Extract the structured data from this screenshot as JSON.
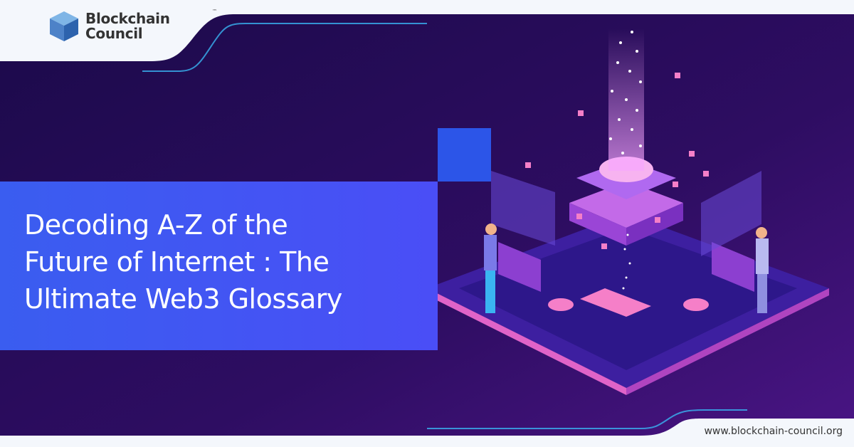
{
  "brand": {
    "name_line1": "Blockchain",
    "name_line2": "Council",
    "trademark": "™",
    "logo_icon": "cube-icon",
    "cube_colors": [
      "#7fb5e6",
      "#4d82c8",
      "#2d63ad"
    ]
  },
  "headline": {
    "lines": [
      "Decoding A-Z of the",
      "Future of Internet : The",
      "Ultimate Web3 Glossary"
    ]
  },
  "footer": {
    "url": "www.blockchain-council.org"
  },
  "colors": {
    "background_dark": "#1e0a4e",
    "background_purple": "#4a1585",
    "banner_blue": "#3a5df0",
    "accent_cyan": "#3ab4f2",
    "accent_pink": "#f57fc8",
    "panel_white": "#f4f7fc"
  },
  "illustration": "isometric-blockchain-server-platform"
}
